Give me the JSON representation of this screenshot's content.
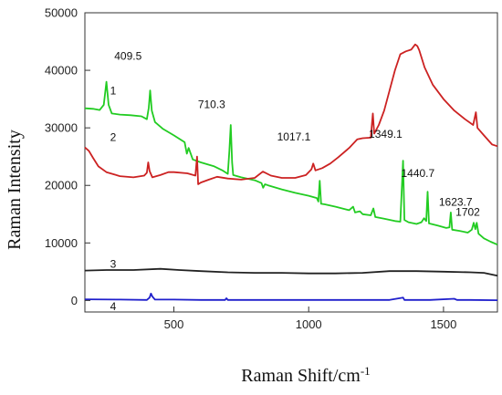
{
  "chart_data": {
    "type": "line",
    "xlabel": "Raman Shift/cm",
    "xlabel_superscript": "-1",
    "ylabel": "Raman Intensity",
    "xlim": [
      170,
      1700
    ],
    "ylim": [
      -2000,
      50000
    ],
    "x_ticks": [
      500,
      1000,
      1500
    ],
    "x_tick_labels": [
      "500",
      "1000",
      "1500"
    ],
    "y_ticks": [
      0,
      10000,
      20000,
      30000,
      40000,
      50000
    ],
    "y_tick_labels": [
      "0",
      "10000",
      "20000",
      "30000",
      "40000",
      "50000"
    ],
    "grid": false,
    "legend": "none",
    "series": [
      {
        "name": "1",
        "color": "#22cc22",
        "points": [
          [
            170,
            33400
          ],
          [
            200,
            33300
          ],
          [
            225,
            33100
          ],
          [
            240,
            34000
          ],
          [
            250,
            38000
          ],
          [
            258,
            34000
          ],
          [
            270,
            32500
          ],
          [
            300,
            32300
          ],
          [
            340,
            32200
          ],
          [
            380,
            32000
          ],
          [
            400,
            31500
          ],
          [
            407,
            33500
          ],
          [
            412,
            36500
          ],
          [
            418,
            33000
          ],
          [
            430,
            31000
          ],
          [
            460,
            29800
          ],
          [
            500,
            28700
          ],
          [
            540,
            27500
          ],
          [
            548,
            25500
          ],
          [
            555,
            26500
          ],
          [
            570,
            24500
          ],
          [
            600,
            24000
          ],
          [
            650,
            23300
          ],
          [
            680,
            22600
          ],
          [
            700,
            22000
          ],
          [
            706,
            26000
          ],
          [
            711,
            30500
          ],
          [
            716,
            24000
          ],
          [
            720,
            21800
          ],
          [
            750,
            21400
          ],
          [
            800,
            20900
          ],
          [
            825,
            20400
          ],
          [
            831,
            19600
          ],
          [
            838,
            20200
          ],
          [
            850,
            20000
          ],
          [
            900,
            19300
          ],
          [
            950,
            18700
          ],
          [
            1000,
            18200
          ],
          [
            1030,
            17800
          ],
          [
            1036,
            17200
          ],
          [
            1041,
            20800
          ],
          [
            1046,
            16800
          ],
          [
            1060,
            16700
          ],
          [
            1100,
            16300
          ],
          [
            1150,
            15700
          ],
          [
            1165,
            16300
          ],
          [
            1172,
            15300
          ],
          [
            1190,
            15500
          ],
          [
            1200,
            15000
          ],
          [
            1230,
            14800
          ],
          [
            1240,
            16000
          ],
          [
            1247,
            14500
          ],
          [
            1280,
            14200
          ],
          [
            1320,
            13800
          ],
          [
            1340,
            13700
          ],
          [
            1346,
            20000
          ],
          [
            1350,
            24300
          ],
          [
            1355,
            14000
          ],
          [
            1370,
            13600
          ],
          [
            1400,
            13300
          ],
          [
            1418,
            13600
          ],
          [
            1428,
            14300
          ],
          [
            1436,
            13800
          ],
          [
            1441,
            18900
          ],
          [
            1446,
            13400
          ],
          [
            1480,
            13000
          ],
          [
            1510,
            12600
          ],
          [
            1522,
            12700
          ],
          [
            1527,
            15300
          ],
          [
            1532,
            12300
          ],
          [
            1560,
            12100
          ],
          [
            1590,
            11800
          ],
          [
            1605,
            12300
          ],
          [
            1612,
            13500
          ],
          [
            1618,
            12400
          ],
          [
            1623,
            13500
          ],
          [
            1630,
            11600
          ],
          [
            1650,
            10800
          ],
          [
            1675,
            10200
          ],
          [
            1700,
            9700
          ]
        ]
      },
      {
        "name": "2",
        "color": "#cc2222",
        "points": [
          [
            170,
            26600
          ],
          [
            185,
            26000
          ],
          [
            200,
            24800
          ],
          [
            220,
            23300
          ],
          [
            250,
            22300
          ],
          [
            300,
            21600
          ],
          [
            350,
            21400
          ],
          [
            390,
            21700
          ],
          [
            400,
            22200
          ],
          [
            405,
            24000
          ],
          [
            410,
            22500
          ],
          [
            420,
            21400
          ],
          [
            450,
            21800
          ],
          [
            480,
            22300
          ],
          [
            500,
            22300
          ],
          [
            550,
            22100
          ],
          [
            580,
            21700
          ],
          [
            586,
            25000
          ],
          [
            590,
            20200
          ],
          [
            600,
            20500
          ],
          [
            630,
            21000
          ],
          [
            660,
            21500
          ],
          [
            700,
            21200
          ],
          [
            750,
            21000
          ],
          [
            800,
            21300
          ],
          [
            830,
            22400
          ],
          [
            860,
            21700
          ],
          [
            900,
            21300
          ],
          [
            950,
            21300
          ],
          [
            990,
            21800
          ],
          [
            1010,
            22800
          ],
          [
            1017,
            23800
          ],
          [
            1025,
            22600
          ],
          [
            1050,
            23000
          ],
          [
            1080,
            23800
          ],
          [
            1110,
            24900
          ],
          [
            1150,
            26500
          ],
          [
            1180,
            28000
          ],
          [
            1200,
            28200
          ],
          [
            1230,
            28300
          ],
          [
            1238,
            32500
          ],
          [
            1243,
            29000
          ],
          [
            1260,
            30500
          ],
          [
            1280,
            33000
          ],
          [
            1300,
            36500
          ],
          [
            1320,
            40000
          ],
          [
            1340,
            42800
          ],
          [
            1360,
            43300
          ],
          [
            1380,
            43600
          ],
          [
            1395,
            44500
          ],
          [
            1403,
            44200
          ],
          [
            1410,
            43500
          ],
          [
            1430,
            40500
          ],
          [
            1460,
            37500
          ],
          [
            1500,
            35000
          ],
          [
            1540,
            33000
          ],
          [
            1580,
            31500
          ],
          [
            1610,
            30500
          ],
          [
            1620,
            32700
          ],
          [
            1626,
            30000
          ],
          [
            1650,
            28700
          ],
          [
            1680,
            27100
          ],
          [
            1700,
            26800
          ]
        ]
      },
      {
        "name": "3",
        "color": "#222222",
        "points": [
          [
            170,
            5200
          ],
          [
            250,
            5300
          ],
          [
            350,
            5300
          ],
          [
            450,
            5500
          ],
          [
            520,
            5300
          ],
          [
            600,
            5100
          ],
          [
            700,
            4900
          ],
          [
            800,
            4800
          ],
          [
            900,
            4800
          ],
          [
            1000,
            4700
          ],
          [
            1100,
            4700
          ],
          [
            1200,
            4800
          ],
          [
            1300,
            5100
          ],
          [
            1400,
            5100
          ],
          [
            1500,
            5000
          ],
          [
            1600,
            4900
          ],
          [
            1650,
            4800
          ],
          [
            1700,
            4300
          ]
        ]
      },
      {
        "name": "4",
        "color": "#1f1fcc",
        "points": [
          [
            170,
            200
          ],
          [
            300,
            150
          ],
          [
            400,
            100
          ],
          [
            410,
            500
          ],
          [
            415,
            1200
          ],
          [
            420,
            700
          ],
          [
            430,
            150
          ],
          [
            500,
            150
          ],
          [
            600,
            100
          ],
          [
            690,
            100
          ],
          [
            695,
            400
          ],
          [
            700,
            100
          ],
          [
            800,
            100
          ],
          [
            900,
            100
          ],
          [
            1000,
            100
          ],
          [
            1100,
            100
          ],
          [
            1200,
            100
          ],
          [
            1300,
            100
          ],
          [
            1350,
            500
          ],
          [
            1355,
            100
          ],
          [
            1450,
            100
          ],
          [
            1540,
            300
          ],
          [
            1550,
            100
          ],
          [
            1600,
            100
          ],
          [
            1700,
            50
          ]
        ]
      }
    ],
    "curve_labels": [
      {
        "text": "1",
        "x": 275,
        "y": 35800
      },
      {
        "text": "2",
        "x": 275,
        "y": 27700
      },
      {
        "text": "3",
        "x": 275,
        "y": 5700
      },
      {
        "text": "4",
        "x": 275,
        "y": -1700
      }
    ],
    "annotations": [
      {
        "text": "409.5",
        "x": 330,
        "y": 41800
      },
      {
        "text": "710.3",
        "x": 640,
        "y": 33400
      },
      {
        "text": "1017.1",
        "x": 945,
        "y": 27800
      },
      {
        "text": "1349.1",
        "x": 1285,
        "y": 28300
      },
      {
        "text": "1440.7",
        "x": 1405,
        "y": 21500
      },
      {
        "text": "1623.7",
        "x": 1545,
        "y": 16500
      },
      {
        "text": "1702",
        "x": 1590,
        "y": 14700
      }
    ]
  }
}
